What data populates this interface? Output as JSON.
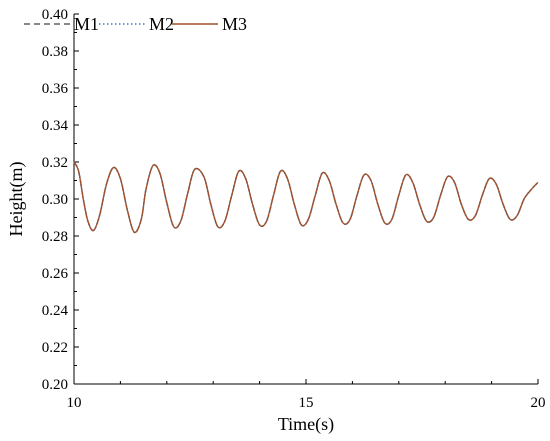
{
  "chart_data": {
    "type": "line",
    "title": "",
    "xlabel": "Time(s)",
    "ylabel": "Height(m)",
    "xlim": [
      10,
      20
    ],
    "ylim": [
      0.2,
      0.4
    ],
    "x_ticks": [
      "10",
      "15",
      "20"
    ],
    "y_ticks": [
      "0.20",
      "0.22",
      "0.24",
      "0.26",
      "0.28",
      "0.30",
      "0.32",
      "0.34",
      "0.36",
      "0.38",
      "0.40"
    ],
    "grid": false,
    "legend": "top-left",
    "series": [
      {
        "name": "M1",
        "color": "#404040",
        "dash": "dashed",
        "x": [
          10.0,
          10.1,
          10.2,
          10.3,
          10.42,
          10.55,
          10.7,
          10.85,
          11.0,
          11.15,
          11.3,
          11.45,
          11.55,
          11.7,
          11.85,
          12.0,
          12.15,
          12.3,
          12.45,
          12.6,
          12.8,
          12.95,
          13.1,
          13.25,
          13.4,
          13.55,
          13.7,
          13.85,
          14.0,
          14.15,
          14.3,
          14.45,
          14.6,
          14.75,
          14.9,
          15.05,
          15.2,
          15.35,
          15.5,
          15.65,
          15.8,
          15.95,
          16.1,
          16.25,
          16.4,
          16.55,
          16.7,
          16.85,
          17.0,
          17.15,
          17.3,
          17.45,
          17.6,
          17.75,
          17.9,
          18.05,
          18.2,
          18.35,
          18.5,
          18.65,
          18.8,
          18.95,
          19.1,
          19.25,
          19.4,
          19.55,
          19.7,
          19.85,
          20.0
        ],
        "y": [
          0.32,
          0.315,
          0.3,
          0.288,
          0.283,
          0.291,
          0.308,
          0.317,
          0.311,
          0.294,
          0.282,
          0.289,
          0.305,
          0.318,
          0.314,
          0.298,
          0.285,
          0.288,
          0.303,
          0.316,
          0.312,
          0.297,
          0.285,
          0.288,
          0.302,
          0.315,
          0.311,
          0.297,
          0.286,
          0.288,
          0.302,
          0.315,
          0.311,
          0.297,
          0.286,
          0.289,
          0.302,
          0.314,
          0.31,
          0.297,
          0.287,
          0.289,
          0.302,
          0.313,
          0.31,
          0.297,
          0.287,
          0.289,
          0.302,
          0.313,
          0.309,
          0.297,
          0.288,
          0.29,
          0.302,
          0.312,
          0.309,
          0.297,
          0.289,
          0.291,
          0.302,
          0.311,
          0.308,
          0.297,
          0.289,
          0.291,
          0.3,
          0.305,
          0.309
        ]
      },
      {
        "name": "M2",
        "color": "#3a7fd5",
        "dash": "dotted",
        "x": [
          10.0,
          10.1,
          10.2,
          10.3,
          10.42,
          10.55,
          10.7,
          10.85,
          11.0,
          11.15,
          11.3,
          11.45,
          11.55,
          11.7,
          11.85,
          12.0,
          12.15,
          12.3,
          12.45,
          12.6,
          12.8,
          12.95,
          13.1,
          13.25,
          13.4,
          13.55,
          13.7,
          13.85,
          14.0,
          14.15,
          14.3,
          14.45,
          14.6,
          14.75,
          14.9,
          15.05,
          15.2,
          15.35,
          15.5,
          15.65,
          15.8,
          15.95,
          16.1,
          16.25,
          16.4,
          16.55,
          16.7,
          16.85,
          17.0,
          17.15,
          17.3,
          17.45,
          17.6,
          17.75,
          17.9,
          18.05,
          18.2,
          18.35,
          18.5,
          18.65,
          18.8,
          18.95,
          19.1,
          19.25,
          19.4,
          19.55,
          19.7,
          19.85,
          20.0
        ],
        "y": [
          0.32,
          0.315,
          0.3,
          0.288,
          0.283,
          0.291,
          0.308,
          0.317,
          0.311,
          0.294,
          0.282,
          0.289,
          0.305,
          0.318,
          0.314,
          0.298,
          0.285,
          0.288,
          0.303,
          0.316,
          0.312,
          0.297,
          0.285,
          0.288,
          0.302,
          0.315,
          0.311,
          0.297,
          0.286,
          0.288,
          0.302,
          0.315,
          0.311,
          0.297,
          0.286,
          0.289,
          0.302,
          0.314,
          0.31,
          0.297,
          0.287,
          0.289,
          0.302,
          0.313,
          0.31,
          0.297,
          0.287,
          0.289,
          0.302,
          0.313,
          0.309,
          0.297,
          0.288,
          0.29,
          0.302,
          0.312,
          0.309,
          0.297,
          0.289,
          0.291,
          0.302,
          0.311,
          0.308,
          0.297,
          0.289,
          0.291,
          0.3,
          0.305,
          0.309
        ]
      },
      {
        "name": "M3",
        "color": "#a0522d",
        "dash": "solid",
        "x": [
          10.0,
          10.1,
          10.2,
          10.3,
          10.42,
          10.55,
          10.7,
          10.85,
          11.0,
          11.15,
          11.3,
          11.45,
          11.55,
          11.7,
          11.85,
          12.0,
          12.15,
          12.3,
          12.45,
          12.6,
          12.8,
          12.95,
          13.1,
          13.25,
          13.4,
          13.55,
          13.7,
          13.85,
          14.0,
          14.15,
          14.3,
          14.45,
          14.6,
          14.75,
          14.9,
          15.05,
          15.2,
          15.35,
          15.5,
          15.65,
          15.8,
          15.95,
          16.1,
          16.25,
          16.4,
          16.55,
          16.7,
          16.85,
          17.0,
          17.15,
          17.3,
          17.45,
          17.6,
          17.75,
          17.9,
          18.05,
          18.2,
          18.35,
          18.5,
          18.65,
          18.8,
          18.95,
          19.1,
          19.25,
          19.4,
          19.55,
          19.7,
          19.85,
          20.0
        ],
        "y": [
          0.32,
          0.315,
          0.3,
          0.288,
          0.283,
          0.291,
          0.308,
          0.317,
          0.311,
          0.294,
          0.282,
          0.289,
          0.305,
          0.318,
          0.314,
          0.298,
          0.285,
          0.288,
          0.303,
          0.316,
          0.312,
          0.297,
          0.285,
          0.288,
          0.302,
          0.315,
          0.311,
          0.297,
          0.286,
          0.288,
          0.302,
          0.315,
          0.311,
          0.297,
          0.286,
          0.289,
          0.302,
          0.314,
          0.31,
          0.297,
          0.287,
          0.289,
          0.302,
          0.313,
          0.31,
          0.297,
          0.287,
          0.289,
          0.302,
          0.313,
          0.309,
          0.297,
          0.288,
          0.29,
          0.302,
          0.312,
          0.309,
          0.297,
          0.289,
          0.291,
          0.302,
          0.311,
          0.308,
          0.297,
          0.289,
          0.291,
          0.3,
          0.305,
          0.309
        ]
      }
    ]
  }
}
